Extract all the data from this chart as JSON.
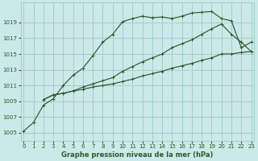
{
  "title": "Graphe pression niveau de la mer (hPa)",
  "bg_color": "#cce8e8",
  "grid_color": "#99cccc",
  "line_color": "#2d5a2d",
  "series": [
    {
      "x": [
        0,
        1,
        2,
        3,
        4,
        5,
        6,
        7,
        8,
        9,
        10,
        11,
        12,
        13,
        14,
        15,
        16,
        17,
        18,
        19,
        20,
        21,
        22,
        23
      ],
      "y": [
        1005.2,
        1006.3,
        1008.5,
        1009.3,
        1011.0,
        1012.3,
        1013.2,
        1014.8,
        1016.5,
        1017.5,
        1019.1,
        1019.5,
        1019.8,
        1019.6,
        1019.7,
        1019.5,
        1019.8,
        1020.2,
        1020.3,
        1020.4,
        1019.5,
        1019.2,
        1015.8,
        1016.5
      ]
    },
    {
      "x": [
        2,
        3,
        4,
        5,
        6,
        7,
        8,
        9,
        10,
        11,
        12,
        13,
        14,
        15,
        16,
        17,
        18,
        19,
        20,
        21,
        22,
        23
      ],
      "y": [
        1009.2,
        1009.8,
        1010.0,
        1010.3,
        1010.8,
        1011.2,
        1011.6,
        1012.0,
        1012.8,
        1013.4,
        1014.0,
        1014.5,
        1015.0,
        1015.8,
        1016.3,
        1016.8,
        1017.5,
        1018.2,
        1018.8,
        1017.5,
        1016.5,
        1015.3
      ]
    },
    {
      "x": [
        2,
        3,
        4,
        5,
        6,
        7,
        8,
        9,
        10,
        11,
        12,
        13,
        14,
        15,
        16,
        17,
        18,
        19,
        20,
        21,
        22,
        23
      ],
      "y": [
        1009.2,
        1009.8,
        1010.0,
        1010.3,
        1010.5,
        1010.8,
        1011.0,
        1011.2,
        1011.5,
        1011.8,
        1012.2,
        1012.5,
        1012.8,
        1013.2,
        1013.5,
        1013.8,
        1014.2,
        1014.5,
        1015.0,
        1015.0,
        1015.2,
        1015.3
      ]
    }
  ],
  "xlim": [
    -0.3,
    23.3
  ],
  "ylim": [
    1004.0,
    1021.5
  ],
  "yticks": [
    1005,
    1007,
    1009,
    1011,
    1013,
    1015,
    1017,
    1019
  ],
  "xticks": [
    0,
    1,
    2,
    3,
    4,
    5,
    6,
    7,
    8,
    9,
    10,
    11,
    12,
    13,
    14,
    15,
    16,
    17,
    18,
    19,
    20,
    21,
    22,
    23
  ],
  "xlabel_fontsize": 6.0,
  "tick_fontsize": 5.0,
  "linewidth": 0.85,
  "markersize": 3.0,
  "marker_ew": 0.7
}
